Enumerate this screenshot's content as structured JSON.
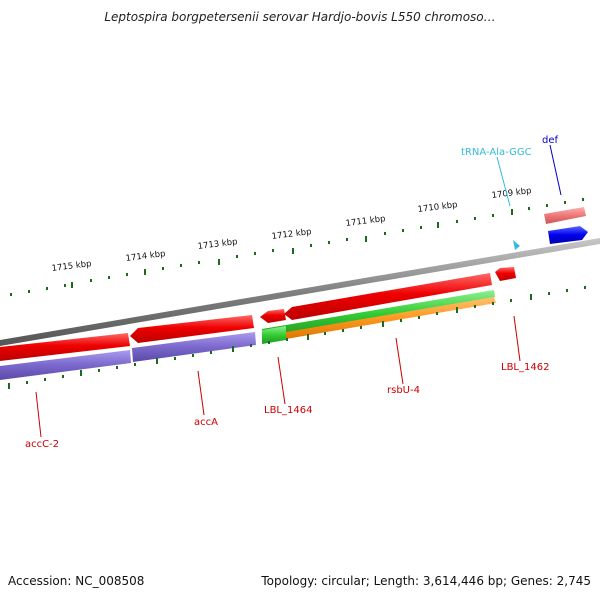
{
  "title": "Leptospira borgpetersenii serovar Hardjo-bovis L550 chromoso…",
  "footer": {
    "accession": "Accession: NC_008508",
    "summary": "Topology: circular; Length: 3,614,446 bp; Genes: 2,745"
  },
  "scale_labels": [
    "1715 kbp",
    "1714 kbp",
    "1713 kbp",
    "1712 kbp",
    "1711 kbp",
    "1710 kbp",
    "1709 kbp"
  ],
  "features": [
    {
      "label": "accC-2",
      "color": "#cc0000"
    },
    {
      "label": "accA",
      "color": "#cc0000"
    },
    {
      "label": "LBL_1464",
      "color": "#cc0000"
    },
    {
      "label": "rsbU-4",
      "color": "#cc0000"
    },
    {
      "label": "LBL_1462",
      "color": "#cc0000"
    },
    {
      "label": "tRNA-Ala-GGC",
      "color": "#33bbdd"
    },
    {
      "label": "def",
      "color": "#0000cc"
    }
  ],
  "colors": {
    "cds": "#ee0000",
    "gene": "#7b68cc",
    "rrna_like": "#33cc33",
    "misc": "#ff9922",
    "trna": "#33bbdd",
    "def_feature": "#0000ee",
    "backbone": "#808080",
    "ticks": "#1a6b1a"
  }
}
